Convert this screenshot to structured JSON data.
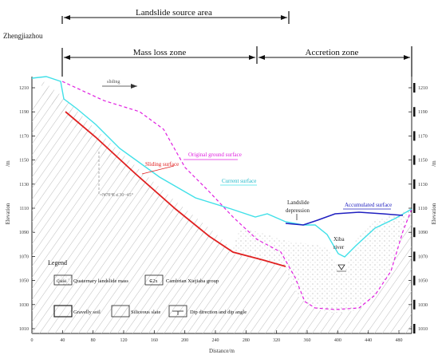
{
  "zones": {
    "source": "Landslide source area",
    "mass_loss": "Mass loss zone",
    "accretion": "Accretion zone"
  },
  "place_label": "Zhengjiazhou",
  "direction_arrow_text": "sliding",
  "labels": {
    "original_ground": "Original ground surface",
    "sliding": "Sliding surface",
    "current": "Current surface",
    "depression_line1": "Landslide",
    "depression_line2": "depression",
    "accumulated": "Accumulated surface",
    "river_line1": "Xiba",
    "river_line2": "river",
    "dip_note": "N75°E∠30~45°"
  },
  "axes": {
    "left_title": "Elevation",
    "right_title": "Elevation",
    "left_unit": "/m",
    "right_unit": "/m",
    "bottom_title": "Distance/m",
    "y_ticks": [
      "1210",
      "1190",
      "1170",
      "1150",
      "1130",
      "1110",
      "1090",
      "1070",
      "1050",
      "1030",
      "1010"
    ],
    "x_ticks": [
      "0",
      "40",
      "80",
      "120",
      "160",
      "200",
      "240",
      "280",
      "320",
      "360",
      "400",
      "440",
      "480"
    ]
  },
  "legend": {
    "title": "Legend",
    "items": [
      {
        "label": "Quaternary landslide mass",
        "symbol": "Q4del"
      },
      {
        "label": "Cambrian Xiejiaba group",
        "symbol": "∈2x"
      },
      {
        "label": "Gravelly soil",
        "symbol": ""
      },
      {
        "label": "Siliceous slate",
        "symbol": ""
      },
      {
        "label": "Dip direction and dip angle",
        "symbol": ""
      }
    ]
  },
  "colors": {
    "original": "#e020e0",
    "sliding": "#e02020",
    "current": "#40e0e8",
    "accumulated": "#2020c0",
    "axis": "#222222",
    "hatch": "#b8b8b8"
  }
}
